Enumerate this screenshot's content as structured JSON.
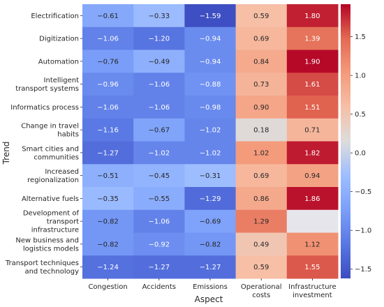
{
  "chart_data": {
    "type": "heatmap",
    "xlabel": "Aspect",
    "ylabel": "Trend",
    "x_categories": [
      "Congestion",
      "Accidents",
      "Emissions",
      "Operational costs",
      "Infrastructure investment"
    ],
    "y_categories": [
      "Electrification",
      "Digitization",
      "Automation",
      "Intelligent transport systems",
      "Informatics process",
      "Change in travel habits",
      "Smart cities and communities",
      "Increased regionalization",
      "Alternative fuels",
      "Development of transport infrastructure",
      "New business and logistics models",
      "Transport techniques and technology"
    ],
    "values": [
      [
        -0.61,
        -0.33,
        -1.59,
        0.59,
        1.8
      ],
      [
        -1.06,
        -1.2,
        -0.94,
        0.69,
        1.39
      ],
      [
        -0.76,
        -0.49,
        -0.94,
        0.84,
        1.9
      ],
      [
        -0.96,
        -1.06,
        -0.88,
        0.73,
        1.61
      ],
      [
        -1.06,
        -1.06,
        -0.98,
        0.9,
        1.51
      ],
      [
        -1.16,
        -0.67,
        -1.02,
        0.18,
        0.71
      ],
      [
        -1.27,
        -1.02,
        -1.02,
        1.02,
        1.82
      ],
      [
        -0.51,
        -0.45,
        -0.31,
        0.69,
        0.94
      ],
      [
        -0.35,
        -0.55,
        -1.29,
        0.86,
        1.86
      ],
      [
        -0.82,
        -1.06,
        -0.69,
        1.29,
        null
      ],
      [
        -0.82,
        -0.92,
        -0.82,
        0.49,
        1.12
      ],
      [
        -1.24,
        -1.27,
        -1.27,
        0.59,
        1.55
      ]
    ],
    "value_labels": [
      [
        "−0.61",
        "−0.33",
        "−1.59",
        "0.59",
        "1.80"
      ],
      [
        "−1.06",
        "−1.20",
        "−0.94",
        "0.69",
        "1.39"
      ],
      [
        "−0.76",
        "−0.49",
        "−0.94",
        "0.84",
        "1.90"
      ],
      [
        "−0.96",
        "−1.06",
        "−0.88",
        "0.73",
        "1.61"
      ],
      [
        "−1.06",
        "−1.06",
        "−0.98",
        "0.90",
        "1.51"
      ],
      [
        "−1.16",
        "−0.67",
        "−1.02",
        "0.18",
        "0.71"
      ],
      [
        "−1.27",
        "−1.02",
        "−1.02",
        "1.02",
        "1.82"
      ],
      [
        "−0.51",
        "−0.45",
        "−0.31",
        "0.69",
        "0.94"
      ],
      [
        "−0.35",
        "−0.55",
        "−1.29",
        "0.86",
        "1.86"
      ],
      [
        "−0.82",
        "−1.06",
        "−0.69",
        "1.29",
        ""
      ],
      [
        "−0.82",
        "−0.92",
        "−0.82",
        "0.49",
        "1.12"
      ],
      [
        "−1.24",
        "−1.27",
        "−1.27",
        "0.59",
        "1.55"
      ]
    ],
    "colormap": "coolwarm",
    "color_range": [
      -1.62,
      1.92
    ],
    "colorbar_ticks": [
      1.5,
      1.0,
      0.5,
      0.0,
      -0.5,
      -1.0,
      -1.5
    ],
    "colorbar_tick_labels": [
      "1.5",
      "1.0",
      "0.5",
      "0.0",
      "−0.5",
      "−1.0",
      "−1.5"
    ],
    "colorbar_placement": "right",
    "grid": false
  }
}
